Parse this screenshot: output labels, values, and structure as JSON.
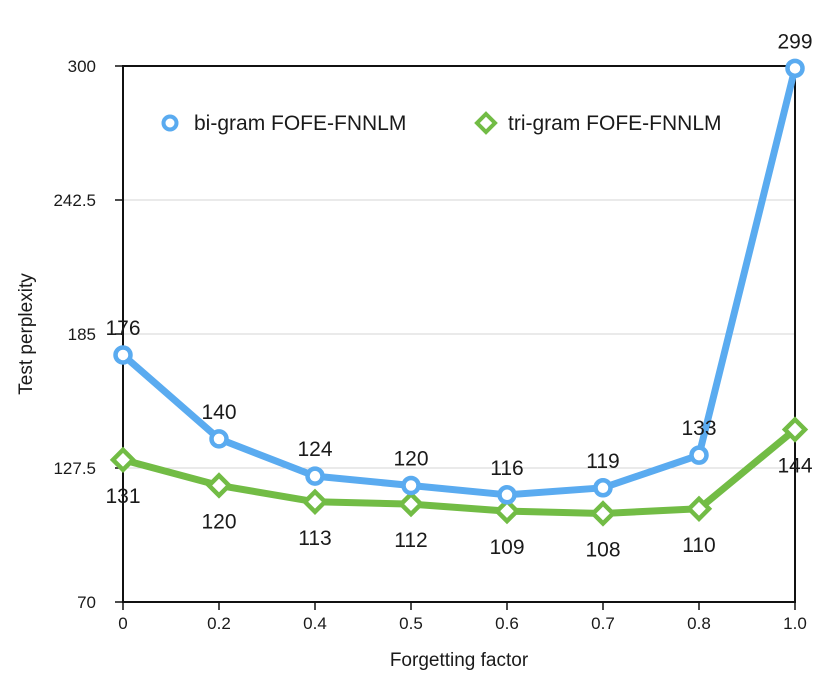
{
  "chart_data": {
    "type": "line",
    "title": "",
    "xlabel": "Forgetting factor",
    "ylabel": "Test perplexity",
    "categories": [
      "0",
      "0.2",
      "0.4",
      "0.5",
      "0.6",
      "0.7",
      "0.8",
      "1.0"
    ],
    "yticks": [
      "70",
      "127.5",
      "185",
      "242.5",
      "300"
    ],
    "ylim": [
      70,
      300
    ],
    "grid": "horizontal",
    "legend_position": "top",
    "series": [
      {
        "name": "bi-gram FOFE-FNNLM",
        "color": "#5aabf0",
        "marker": "circle",
        "values": [
          176,
          140,
          124,
          120,
          116,
          119,
          133,
          299
        ],
        "labels": [
          "176",
          "140",
          "124",
          "120",
          "116",
          "119",
          "133",
          "299"
        ]
      },
      {
        "name": "tri-gram FOFE-FNNLM",
        "color": "#72bc45",
        "marker": "diamond",
        "values": [
          131,
          120,
          113,
          112,
          109,
          108,
          110,
          144
        ],
        "labels": [
          "131",
          "120",
          "113",
          "112",
          "109",
          "108",
          "110",
          "144"
        ]
      }
    ]
  }
}
